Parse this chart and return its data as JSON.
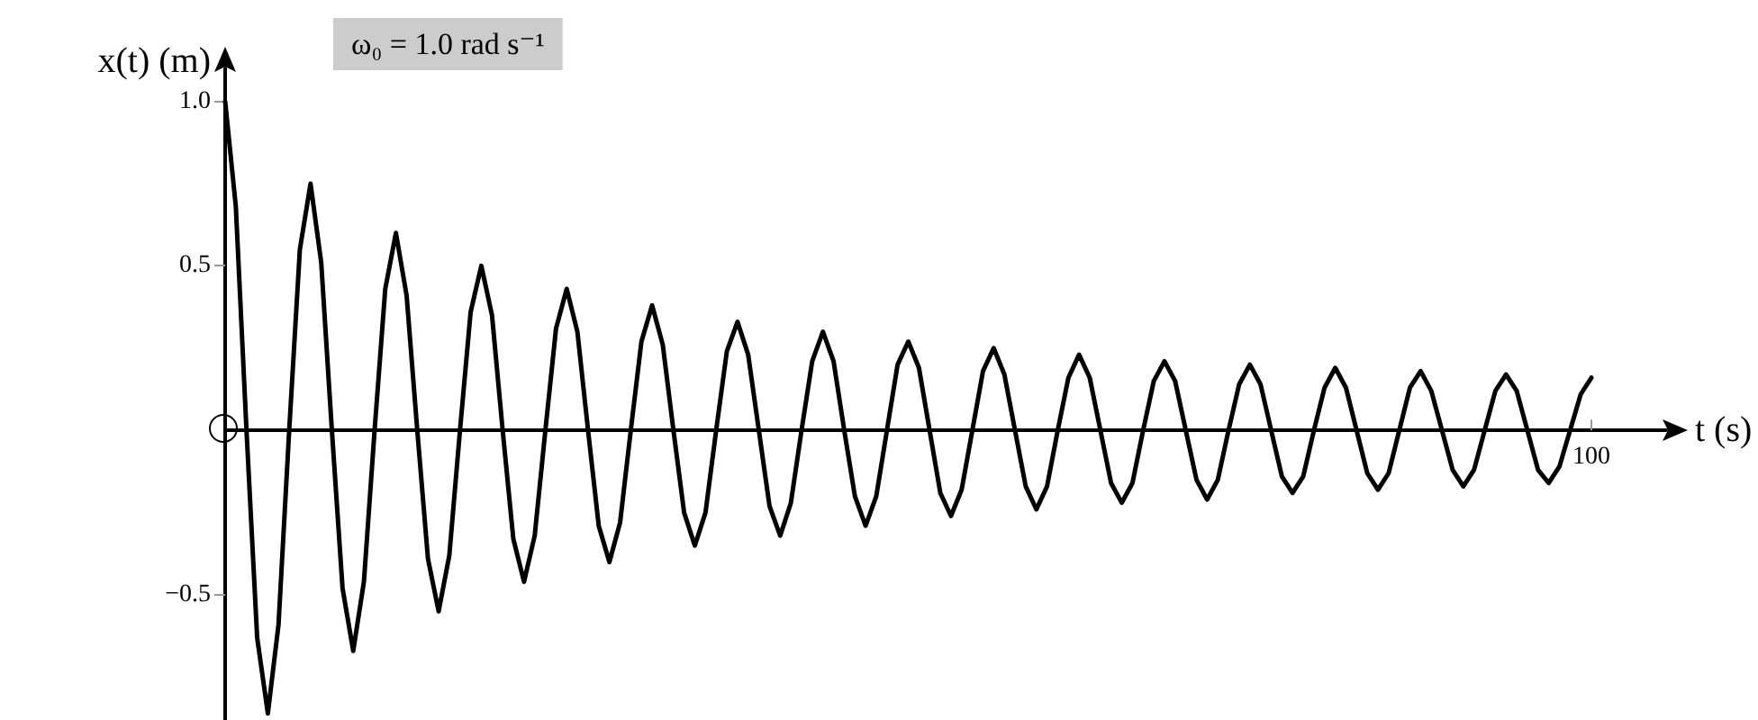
{
  "chart_data": {
    "type": "line",
    "xlabel": "t (s)",
    "ylabel": "x(t) (m)",
    "annotations": [
      "ω₀ = 1.0 rad s⁻¹"
    ],
    "categories": [
      null,
      null,
      null,
      null,
      null,
      null,
      null,
      null,
      null,
      null,
      null,
      null,
      null,
      null,
      null,
      null,
      null,
      null,
      null,
      null,
      null,
      null,
      null,
      null,
      null,
      null,
      null,
      null,
      null,
      null,
      null,
      null,
      null,
      null,
      null,
      null,
      null,
      null,
      null,
      null,
      null,
      null,
      null,
      null,
      null,
      null,
      null,
      null,
      null,
      null,
      null,
      null,
      null,
      null,
      null,
      null,
      null,
      null,
      null,
      null,
      null,
      null,
      null,
      null,
      null,
      null,
      null,
      null,
      null,
      null,
      null,
      null,
      null,
      null,
      null,
      null,
      null,
      null,
      null,
      null,
      null,
      null,
      null,
      null,
      null,
      null,
      null,
      null,
      null,
      null,
      null,
      null,
      null,
      null,
      null,
      null,
      null,
      null,
      null,
      null,
      null,
      null,
      null,
      null,
      null,
      null,
      null,
      null,
      null,
      null,
      null,
      null,
      null,
      null,
      null,
      null,
      null,
      null,
      null,
      null,
      null,
      null,
      null,
      null,
      null,
      null,
      null,
      null,
      "100",
      null,
      null,
      null,
      null,
      null,
      null,
      null
    ],
    "series": [
      {
        "color": "#000000",
        "values": [
          1.0,
          0.68,
          0,
          -0.63,
          -0.86,
          -0.59,
          0,
          0.55,
          0.75,
          0.51,
          0,
          -0.48,
          -0.67,
          -0.46,
          0,
          0.43,
          0.6,
          0.41,
          0,
          -0.39,
          -0.55,
          -0.38,
          0,
          0.36,
          0.5,
          0.35,
          0,
          -0.33,
          -0.46,
          -0.32,
          0,
          0.31,
          0.43,
          0.3,
          0,
          -0.29,
          -0.4,
          -0.28,
          0,
          0.27,
          0.38,
          0.26,
          0,
          -0.25,
          -0.35,
          -0.25,
          0,
          0.24,
          0.33,
          0.23,
          0,
          -0.23,
          -0.32,
          -0.22,
          0,
          0.21,
          0.3,
          0.21,
          0,
          -0.2,
          -0.29,
          -0.2,
          0,
          0.2,
          0.27,
          0.19,
          0,
          -0.19,
          -0.26,
          -0.18,
          0,
          0.18,
          0.25,
          0.17,
          0,
          -0.17,
          -0.24,
          -0.17,
          0,
          0.16,
          0.23,
          0.16,
          0,
          -0.16,
          -0.22,
          -0.16,
          0,
          0.15,
          0.21,
          0.15,
          0,
          -0.15,
          -0.21,
          -0.15,
          0,
          0.14,
          0.2,
          0.14,
          0,
          -0.14,
          -0.19,
          -0.14,
          0,
          0.13,
          0.19,
          0.13,
          0,
          -0.13,
          -0.18,
          -0.13,
          0,
          0.13,
          0.18,
          0.12,
          0,
          -0.12,
          -0.17,
          -0.12,
          0,
          0.12,
          0.17,
          0.12,
          0,
          -0.12,
          -0.16,
          -0.11,
          0,
          0.11,
          0.16,
          null,
          null,
          null,
          null,
          null,
          null,
          null
        ]
      }
    ],
    "ylim": [
      -0.88,
      1.1
    ],
    "yticks": [
      {
        "value": -0.5,
        "label": "−0.5"
      },
      {
        "value": 0.5,
        "label": "0.5"
      },
      {
        "value": 1.0,
        "label": "1.0"
      }
    ],
    "grid": false,
    "line_style": "solid"
  }
}
